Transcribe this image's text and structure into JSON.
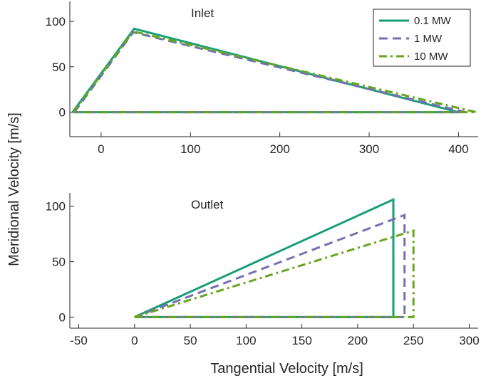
{
  "figure": {
    "shared_ylabel": "Meridional Velocity [m/s]"
  },
  "chart_data": [
    {
      "type": "line",
      "title": "Inlet",
      "xlabel": "",
      "ylabel": "Meridional Velocity [m/s]",
      "xlim": [
        -35,
        422
      ],
      "ylim": [
        -27,
        122
      ],
      "xticks": [
        0,
        100,
        200,
        300,
        400
      ],
      "yticks": [
        0,
        50,
        100
      ],
      "grid": false,
      "legend": "top-right",
      "series": [
        {
          "name": "0.1 MW",
          "color": "#1a9e77",
          "dash": "solid",
          "x": [
            -32,
            37,
            400,
            -32
          ],
          "y": [
            0,
            92,
            0,
            0
          ]
        },
        {
          "name": "1 MW",
          "color": "#7570b3",
          "dash": "dash",
          "x": [
            -30,
            36,
            408,
            -30
          ],
          "y": [
            0,
            88,
            0,
            0
          ]
        },
        {
          "name": "10 MW",
          "color": "#66a61e",
          "dash": "dashdot",
          "x": [
            -31,
            36,
            420,
            -31
          ],
          "y": [
            0,
            89,
            0,
            0
          ]
        }
      ]
    },
    {
      "type": "line",
      "title": "Outlet",
      "xlabel": "Tangential Velocity [m/s]",
      "ylabel": "Meridional Velocity [m/s]",
      "xlim": [
        -58,
        308
      ],
      "ylim": [
        -10,
        112
      ],
      "xticks": [
        -50,
        0,
        50,
        100,
        150,
        200,
        250,
        300
      ],
      "yticks": [
        0,
        50,
        100
      ],
      "grid": false,
      "legend": "none",
      "series": [
        {
          "name": "0.1 MW",
          "color": "#1a9e77",
          "dash": "solid",
          "x": [
            0,
            232,
            232,
            0
          ],
          "y": [
            0,
            106,
            0,
            0
          ]
        },
        {
          "name": "1 MW",
          "color": "#7570b3",
          "dash": "dash",
          "x": [
            0,
            242,
            242,
            0
          ],
          "y": [
            0,
            92,
            0,
            0
          ]
        },
        {
          "name": "10 MW",
          "color": "#66a61e",
          "dash": "dashdot",
          "x": [
            0,
            250,
            250,
            0
          ],
          "y": [
            0,
            78,
            0,
            0
          ]
        }
      ]
    }
  ]
}
